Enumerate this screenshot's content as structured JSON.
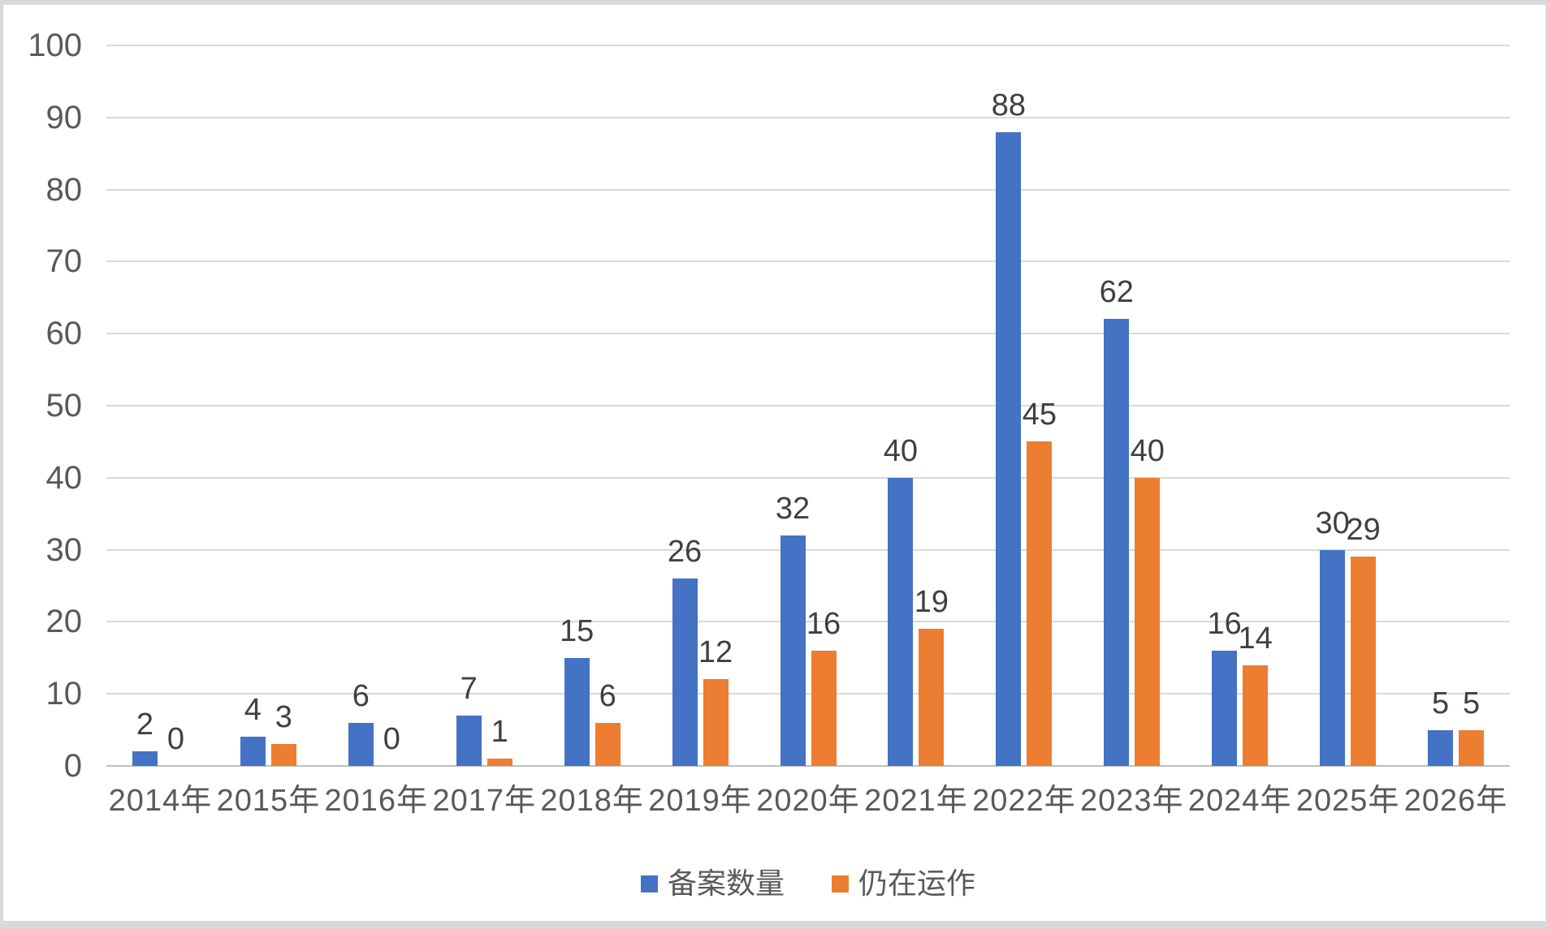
{
  "chart_data": {
    "type": "bar",
    "title": "",
    "xlabel": "",
    "ylabel": "",
    "categories": [
      "2014年",
      "2015年",
      "2016年",
      "2017年",
      "2018年",
      "2019年",
      "2020年",
      "2021年",
      "2022年",
      "2023年",
      "2024年",
      "2025年",
      "2026年"
    ],
    "series": [
      {
        "name": "备案数量",
        "color": "#4472C4",
        "values": [
          2,
          4,
          6,
          7,
          15,
          26,
          32,
          40,
          88,
          62,
          16,
          30,
          5
        ]
      },
      {
        "name": "仍在运作",
        "color": "#ED7D31",
        "values": [
          0,
          3,
          0,
          1,
          6,
          12,
          16,
          19,
          45,
          40,
          14,
          29,
          5
        ]
      }
    ],
    "ylim": [
      0,
      100
    ],
    "yticks": [
      0,
      10,
      20,
      30,
      40,
      50,
      60,
      70,
      80,
      90,
      100
    ],
    "grid": true,
    "data_labels": true,
    "legend_position": "bottom"
  },
  "colors": {
    "series1": "#4472C4",
    "series2": "#ED7D31",
    "gridline": "#D9D9D9",
    "axis_text": "#595959",
    "data_label_text": "#404040",
    "frame_border": "#D9D9D9",
    "background": "#FFFFFF"
  }
}
